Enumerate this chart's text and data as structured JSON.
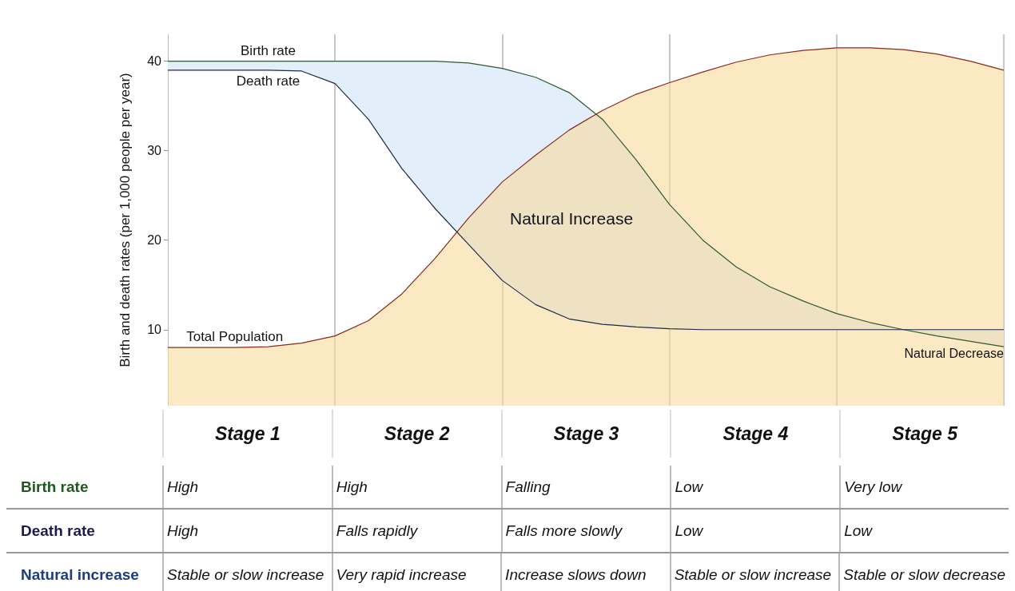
{
  "chart_data": [
    {
      "type": "line",
      "ylabel": "Birth and death rates (per 1,000 people per year)",
      "categories": [
        null,
        null,
        null,
        null,
        null,
        null,
        null,
        null,
        null,
        null,
        null,
        null,
        null,
        null,
        null,
        null,
        null,
        null,
        null,
        null,
        null,
        null,
        null,
        null,
        null,
        null
      ],
      "series": [
        {
          "name": "Total Population",
          "type": "area",
          "color": "#8b2a1a",
          "values": [
            8,
            8,
            8,
            8.1,
            8.5,
            9.3,
            11,
            14,
            18,
            22.5,
            26.5,
            29.5,
            32.3,
            34.5,
            36.3,
            37.6,
            38.8,
            39.9,
            40.7,
            41.2,
            41.5,
            41.5,
            41.3,
            40.8,
            40,
            39
          ]
        },
        {
          "name": "Birth rate",
          "color": "#2f5a2f",
          "values": [
            40,
            40,
            40,
            40,
            40,
            40,
            40,
            40,
            40,
            39.8,
            39.2,
            38.2,
            36.5,
            33.5,
            29,
            24,
            20,
            17,
            14.8,
            13.2,
            11.8,
            10.8,
            10,
            9.3,
            8.7,
            8.1
          ]
        },
        {
          "name": "Death rate",
          "color": "#1e2a4a",
          "values": [
            39,
            39,
            39,
            39,
            38.9,
            37.5,
            33.5,
            28,
            23.5,
            19.5,
            15.5,
            12.8,
            11.2,
            10.6,
            10.3,
            10.1,
            10,
            10,
            10,
            10,
            10,
            10,
            10,
            10,
            10,
            10
          ]
        }
      ],
      "ylim": [
        1.5,
        43
      ],
      "yticks": [
        10,
        20,
        30,
        40
      ],
      "grid": "x",
      "annotations": [
        "Natural Increase",
        "Natural Decrease"
      ]
    },
    {
      "type": "other",
      "categories": [
        "Stage 1",
        "Stage 2",
        "Stage 3",
        "Stage 4",
        "Stage 5"
      ],
      "y_categories": [
        "Birth rate",
        "Death rate",
        "Natural increase"
      ],
      "colors": [
        "#1e5a1e",
        "#1a1a50",
        "#1d3c78"
      ],
      "cell_labels": [
        [
          "High",
          "High",
          "Falling",
          "Low",
          "Very low"
        ],
        [
          "High",
          "Falls rapidly",
          "Falls more slowly",
          "Low",
          "Low"
        ],
        [
          "Stable or slow increase",
          "Very rapid increase",
          "Increase slows down",
          "Stable or slow increase",
          "Stable or slow decrease"
        ]
      ]
    }
  ]
}
